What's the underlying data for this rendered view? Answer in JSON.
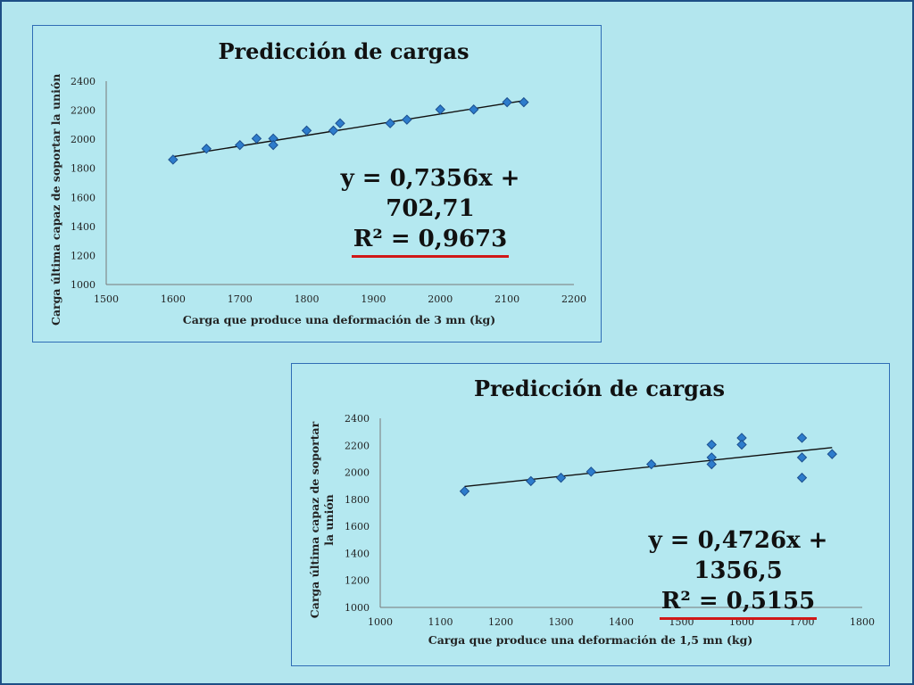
{
  "colors": {
    "background": "#b3e6ee",
    "border": "#1e4f86",
    "marker": "#2d7ccc",
    "marker_edge": "#1b4f8e",
    "trendline": "#111111",
    "underline": "#d01818"
  },
  "chart_data": [
    {
      "type": "scatter",
      "title": "Predicción de cargas",
      "xlabel": "Carga que produce una deformación de 3 mn (kg)",
      "ylabel": "Carga última capaz de soportar la unión",
      "xlim": [
        1500,
        2200
      ],
      "ylim": [
        1000,
        2400
      ],
      "xticks": [
        "1500",
        "1600",
        "1700",
        "1800",
        "1900",
        "2000",
        "2100",
        "2200"
      ],
      "yticks": [
        "1000",
        "1200",
        "1400",
        "1600",
        "1800",
        "2000",
        "2200",
        "2400"
      ],
      "points": [
        [
          1600,
          1860
        ],
        [
          1650,
          1935
        ],
        [
          1700,
          1960
        ],
        [
          1725,
          2005
        ],
        [
          1750,
          2005
        ],
        [
          1750,
          1960
        ],
        [
          1800,
          2060
        ],
        [
          1840,
          2060
        ],
        [
          1850,
          2110
        ],
        [
          1925,
          2110
        ],
        [
          1950,
          2135
        ],
        [
          2000,
          2205
        ],
        [
          2050,
          2205
        ],
        [
          2100,
          2255
        ],
        [
          2125,
          2255
        ]
      ],
      "trendline": {
        "slope": 0.7356,
        "intercept": 702.71,
        "x_range": [
          1600,
          2125
        ]
      },
      "equation": "y = 0,7356x + 702,71",
      "r2": "R² = 0,9673",
      "grid": false,
      "legend": "none"
    },
    {
      "type": "scatter",
      "title": "Predicción de cargas",
      "xlabel": "Carga que produce una deformación de 1,5 mn (kg)",
      "ylabel": "Carga última capaz de soportar la unión",
      "xlim": [
        1000,
        1800
      ],
      "ylim": [
        1000,
        2400
      ],
      "xticks": [
        "1000",
        "1100",
        "1200",
        "1300",
        "1400",
        "1500",
        "1600",
        "1700",
        "1800"
      ],
      "yticks": [
        "1000",
        "1200",
        "1400",
        "1600",
        "1800",
        "2000",
        "2200",
        "2400"
      ],
      "points": [
        [
          1140,
          1860
        ],
        [
          1250,
          1935
        ],
        [
          1300,
          1960
        ],
        [
          1350,
          2005
        ],
        [
          1450,
          2060
        ],
        [
          1550,
          2205
        ],
        [
          1550,
          2110
        ],
        [
          1550,
          2060
        ],
        [
          1600,
          2255
        ],
        [
          1600,
          2205
        ],
        [
          1700,
          2255
        ],
        [
          1700,
          2110
        ],
        [
          1700,
          1960
        ],
        [
          1750,
          2135
        ]
      ],
      "trendline": {
        "slope": 0.4726,
        "intercept": 1356.5,
        "x_range": [
          1140,
          1750
        ]
      },
      "equation": "y = 0,4726x + 1356,5",
      "r2": "R² = 0,5155",
      "grid": false,
      "legend": "none"
    }
  ]
}
